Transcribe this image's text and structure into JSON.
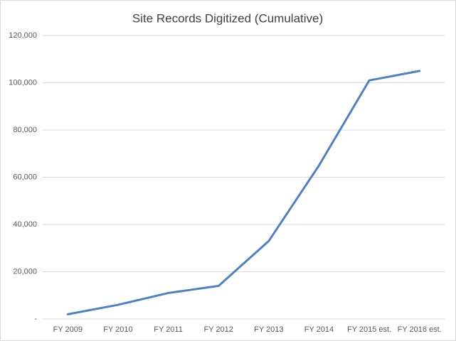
{
  "chart_data": {
    "type": "line",
    "title": "Site Records Digitized (Cumulative)",
    "categories": [
      "FY 2009",
      "FY 2010",
      "FY 2011",
      "FY 2012",
      "FY 2013",
      "FY 2014",
      "FY 2015 est.",
      "FY 2016 est."
    ],
    "values": [
      2000,
      6000,
      11000,
      14000,
      33000,
      65000,
      101000,
      105000
    ],
    "color": "#4f81bd",
    "ylim": [
      0,
      120000
    ],
    "yticks": [
      {
        "value": 0,
        "label": "-"
      },
      {
        "value": 20000,
        "label": "20,000"
      },
      {
        "value": 40000,
        "label": "40,000"
      },
      {
        "value": 60000,
        "label": "60,000"
      },
      {
        "value": 80000,
        "label": "80,000"
      },
      {
        "value": 100000,
        "label": "100,000"
      },
      {
        "value": 120000,
        "label": "120,000"
      }
    ],
    "grid": true
  }
}
